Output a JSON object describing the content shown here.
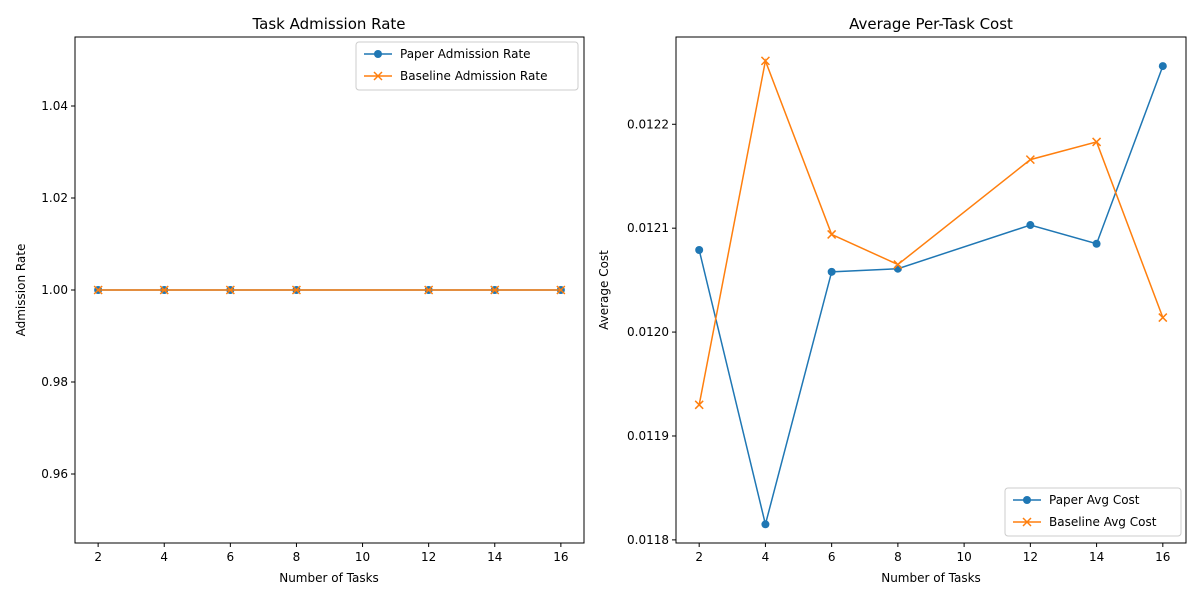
{
  "chart_data": [
    {
      "type": "line",
      "title": "Task Admission Rate",
      "xlabel": "Number of Tasks",
      "ylabel": "Admission Rate",
      "x": [
        2,
        4,
        6,
        8,
        12,
        14,
        16
      ],
      "xlim": [
        1.3,
        16.7
      ],
      "ylim": [
        0.945,
        1.055
      ],
      "xticks": [
        2,
        4,
        6,
        8,
        10,
        12,
        14,
        16
      ],
      "yticks": [
        0.96,
        0.98,
        1.0,
        1.02,
        1.04
      ],
      "ytick_labels": [
        "0.96",
        "0.98",
        "1.00",
        "1.02",
        "1.04"
      ],
      "legend_position": "top-right",
      "series": [
        {
          "name": "Paper Admission Rate",
          "values": [
            1,
            1,
            1,
            1,
            1,
            1,
            1
          ],
          "color": "#1f77b4",
          "marker": "circle"
        },
        {
          "name": "Baseline Admission Rate",
          "values": [
            1,
            1,
            1,
            1,
            1,
            1,
            1
          ],
          "color": "#ff7f0e",
          "marker": "x"
        }
      ]
    },
    {
      "type": "line",
      "title": "Average Per-Task Cost",
      "xlabel": "Number of Tasks",
      "ylabel": "Average Cost",
      "x": [
        2,
        4,
        6,
        8,
        12,
        14,
        16
      ],
      "xlim": [
        1.3,
        16.7
      ],
      "ylim": [
        0.011797,
        0.012284
      ],
      "xticks": [
        2,
        4,
        6,
        8,
        10,
        12,
        14,
        16
      ],
      "yticks": [
        0.0118,
        0.0119,
        0.012,
        0.0121,
        0.0122
      ],
      "ytick_labels": [
        "0.0118",
        "0.0119",
        "0.0120",
        "0.0121",
        "0.0122"
      ],
      "legend_position": "bottom-right",
      "series": [
        {
          "name": "Paper Avg Cost",
          "values": [
            0.012079,
            0.011815,
            0.012058,
            0.012061,
            0.012103,
            0.012085,
            0.012256
          ],
          "color": "#1f77b4",
          "marker": "circle"
        },
        {
          "name": "Baseline Avg Cost",
          "values": [
            0.01193,
            0.012261,
            0.012094,
            0.012065,
            0.012166,
            0.012183,
            0.012014
          ],
          "color": "#ff7f0e",
          "marker": "x"
        }
      ]
    }
  ]
}
